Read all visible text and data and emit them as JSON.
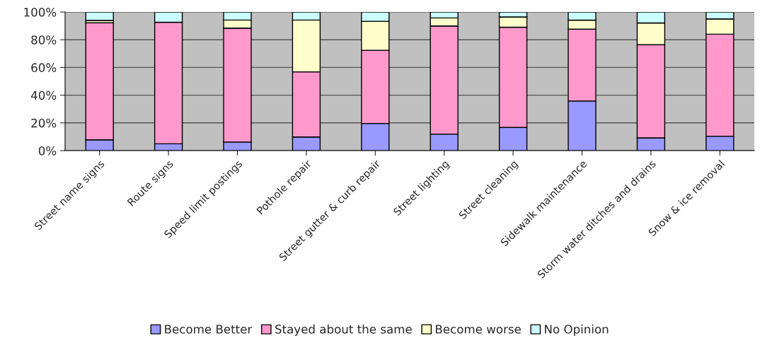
{
  "chart_data": {
    "type": "bar",
    "stacked": true,
    "categories": [
      "Street name signs",
      "Route signs",
      "Speed limit postings",
      "Pothole repair",
      "Street gutter & curb repair",
      "Street lighting",
      "Street cleaning",
      "Sidewalk maintenance",
      "Storm water ditches and drains",
      "Snow & ice removal"
    ],
    "series": [
      {
        "name": "Become Better",
        "color": "#9999ff",
        "values": [
          7.8,
          4.9,
          6.2,
          9.8,
          19.6,
          11.9,
          16.7,
          35.8,
          9.2,
          10.4
        ]
      },
      {
        "name": "Stayed about the same",
        "color": "#ff99cc",
        "values": [
          84.4,
          87.7,
          82.2,
          47.0,
          52.8,
          78.0,
          72.3,
          51.8,
          67.2,
          73.6
        ]
      },
      {
        "name": "Become worse",
        "color": "#ffffcc",
        "values": [
          1.8,
          null,
          5.8,
          37.4,
          20.9,
          5.8,
          7.4,
          6.5,
          15.7,
          11.0
        ]
      },
      {
        "name": "No Opinion",
        "color": "#ccffff",
        "values": [
          6.0,
          7.4,
          5.8,
          5.8,
          6.7,
          4.3,
          3.6,
          5.9,
          7.9,
          5.0
        ]
      }
    ],
    "ylim": [
      0,
      100
    ],
    "yticks": [
      {
        "value": 0,
        "label": "0%"
      },
      {
        "value": 20,
        "label": "20%"
      },
      {
        "value": 40,
        "label": "40%"
      },
      {
        "value": 60,
        "label": "60%"
      },
      {
        "value": 80,
        "label": "80%"
      },
      {
        "value": 100,
        "label": "100%"
      }
    ],
    "grid": "y",
    "legend": "bottom"
  }
}
